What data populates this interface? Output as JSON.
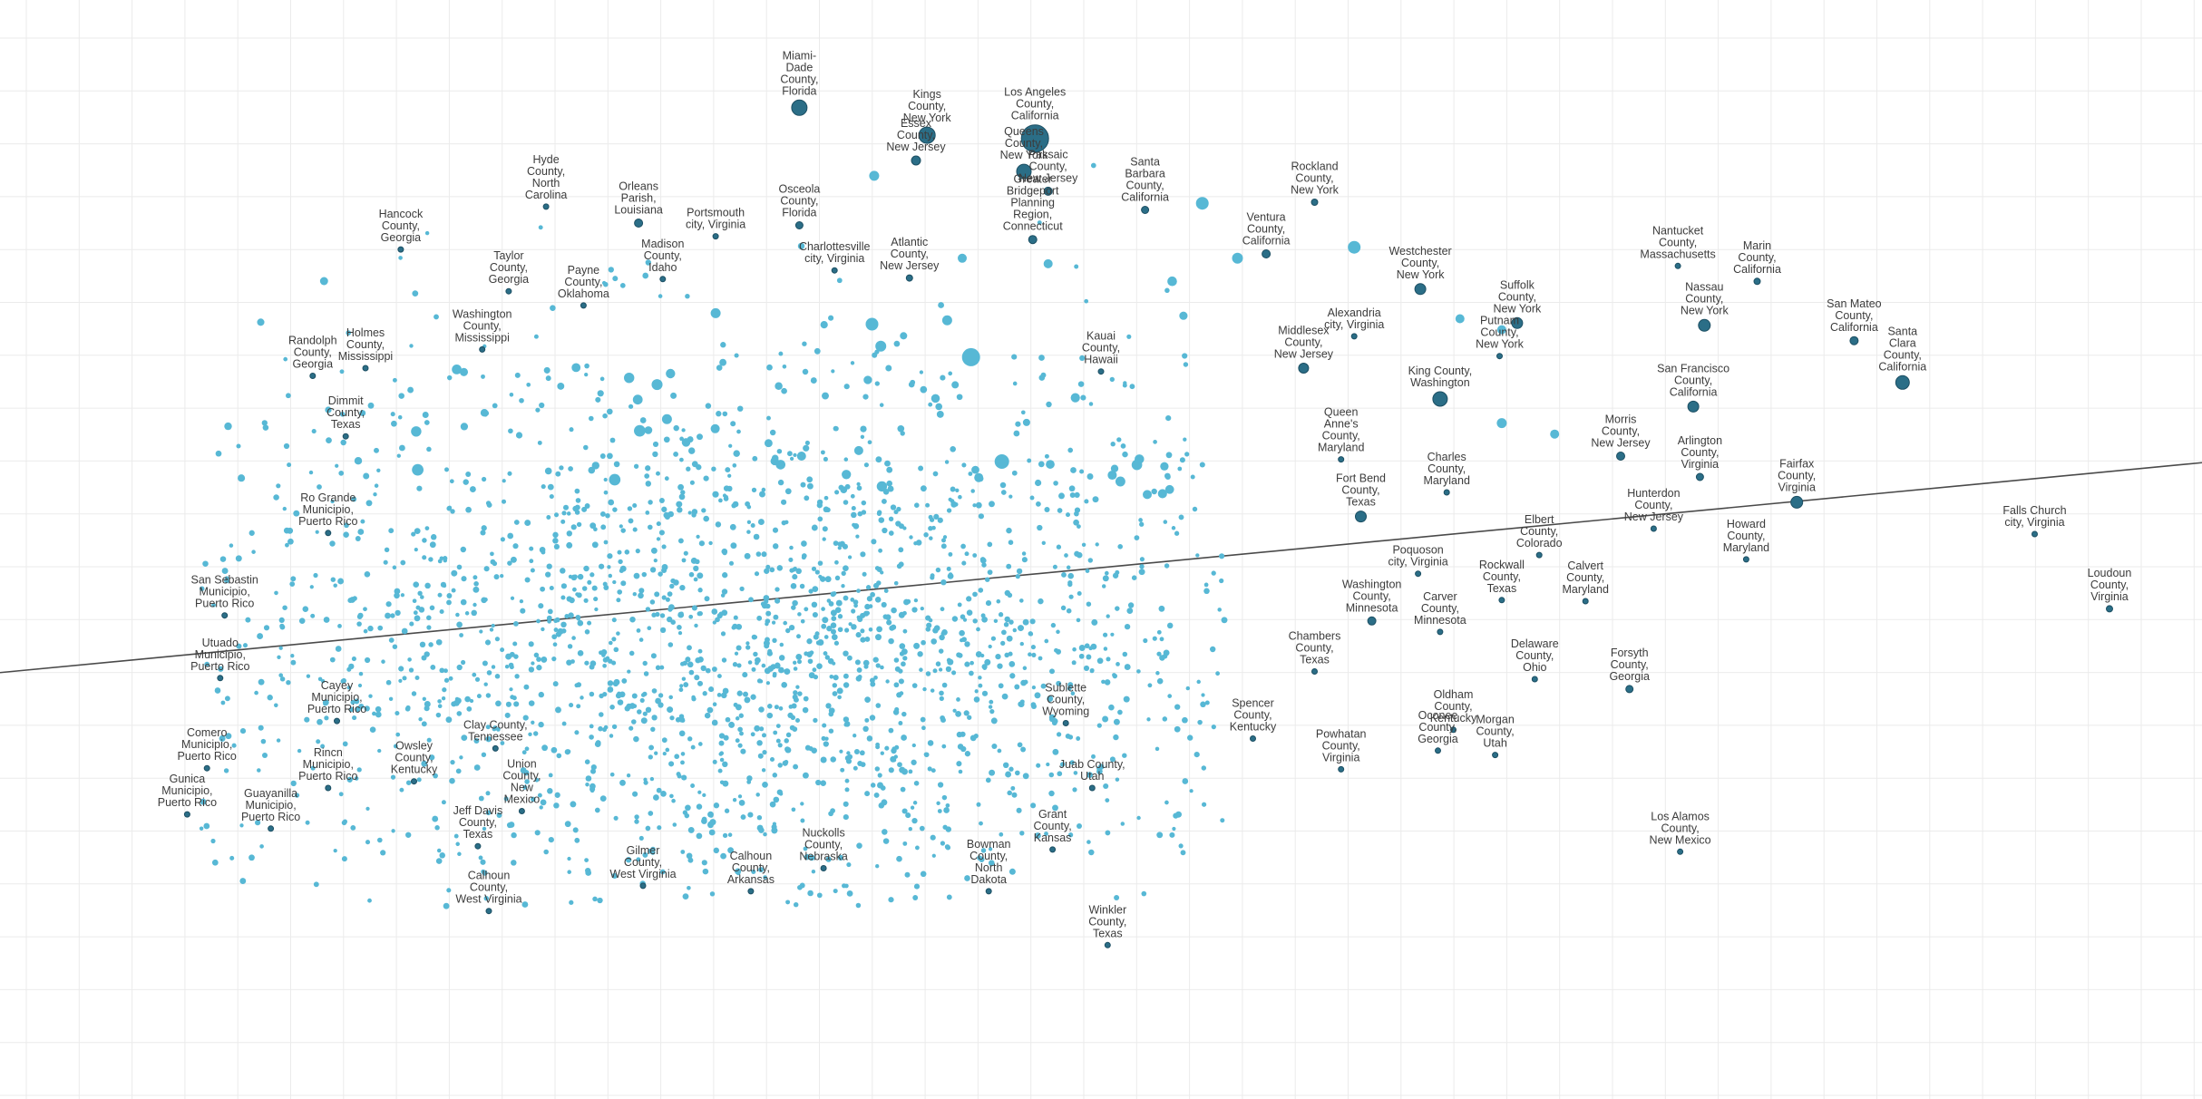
{
  "chart_data": {
    "type": "scatter",
    "title": "",
    "xlabel": "",
    "ylabel": "",
    "grid": true,
    "legend": "none",
    "trendline": true,
    "xlim": [
      0,
      100
    ],
    "ylim": [
      0,
      100
    ],
    "colors": {
      "points": "#57b8d5",
      "labeled_points": "#2b6e87",
      "trendline": "#4a4a4a",
      "grid": "#ebebeb"
    },
    "trend": {
      "x": [
        0,
        100
      ],
      "y": [
        38.8,
        57.9
      ]
    },
    "cloud": {
      "count": 2100,
      "center_x": 34,
      "center_y": 42,
      "spread_x": 13,
      "spread_y": 13
    },
    "big_points": [
      {
        "x": 39.6,
        "y": 70.5,
        "size": 14
      },
      {
        "x": 44.1,
        "y": 67.5,
        "size": 20
      },
      {
        "x": 40.0,
        "y": 68.5,
        "size": 12
      },
      {
        "x": 45.5,
        "y": 58.0,
        "size": 16
      },
      {
        "x": 54.6,
        "y": 81.5,
        "size": 14
      },
      {
        "x": 61.5,
        "y": 77.5,
        "size": 14
      },
      {
        "x": 56.2,
        "y": 76.5,
        "size": 12
      },
      {
        "x": 39.7,
        "y": 84.0,
        "size": 11
      },
      {
        "x": 32.5,
        "y": 71.5,
        "size": 11
      },
      {
        "x": 47.6,
        "y": 76.0,
        "size": 10
      },
      {
        "x": 43.7,
        "y": 76.5,
        "size": 10
      },
      {
        "x": 68.2,
        "y": 61.5,
        "size": 11
      },
      {
        "x": 52.1,
        "y": 55.0,
        "size": 10
      },
      {
        "x": 36.4,
        "y": 58.5,
        "size": 10
      },
      {
        "x": 66.3,
        "y": 71.0,
        "size": 10
      },
      {
        "x": 70.6,
        "y": 60.5,
        "size": 10
      },
      {
        "x": 68.2,
        "y": 70.0,
        "size": 10
      },
      {
        "x": 39.0,
        "y": 59.0,
        "size": 10
      }
    ],
    "labeled_points": [
      {
        "x": 36.3,
        "y": 90.2,
        "size": 17,
        "label": [
          "Miami-",
          "Dade",
          "County,",
          "Florida"
        ]
      },
      {
        "x": 42.1,
        "y": 87.7,
        "size": 18,
        "label": [
          "Kings",
          "County,",
          "New York"
        ]
      },
      {
        "x": 47.0,
        "y": 87.4,
        "size": 30,
        "label": [
          "Los Angeles",
          "County,",
          "California"
        ]
      },
      {
        "x": 41.6,
        "y": 85.4,
        "size": 10,
        "label": [
          "Essex",
          "County,",
          "New Jersey"
        ]
      },
      {
        "x": 46.5,
        "y": 84.4,
        "size": 16,
        "label": [
          "Queens",
          "County,",
          "New York"
        ]
      },
      {
        "x": 47.6,
        "y": 82.6,
        "size": 9,
        "label": [
          "Passaic",
          "County,",
          "New Jersey"
        ]
      },
      {
        "x": 52.0,
        "y": 80.9,
        "size": 8,
        "label": [
          "Santa",
          "Barbara",
          "County,",
          "California"
        ]
      },
      {
        "x": 59.7,
        "y": 81.6,
        "size": 7,
        "label": [
          "Rockland",
          "County,",
          "New York"
        ]
      },
      {
        "x": 57.5,
        "y": 76.9,
        "size": 9,
        "label": [
          "Ventura",
          "County,",
          "California"
        ]
      },
      {
        "x": 36.3,
        "y": 79.5,
        "size": 8,
        "label": [
          "Osceola",
          "County,",
          "Florida"
        ]
      },
      {
        "x": 29.0,
        "y": 79.7,
        "size": 9,
        "label": [
          "Orleans",
          "Parish,",
          "Louisiana"
        ]
      },
      {
        "x": 24.8,
        "y": 81.2,
        "size": 6,
        "label": [
          "Hyde",
          "County,",
          "North",
          "Carolina"
        ]
      },
      {
        "x": 32.5,
        "y": 78.5,
        "size": 6,
        "label": [
          "Portsmouth",
          "city, Virginia"
        ]
      },
      {
        "x": 30.1,
        "y": 74.6,
        "size": 6,
        "label": [
          "Madison",
          "County,",
          "Idaho"
        ]
      },
      {
        "x": 37.9,
        "y": 75.4,
        "size": 6,
        "label": [
          "Charlottesville",
          "city, Virginia"
        ]
      },
      {
        "x": 41.3,
        "y": 74.7,
        "size": 7,
        "label": [
          "Atlantic",
          "County,",
          "New Jersey"
        ]
      },
      {
        "x": 46.9,
        "y": 78.2,
        "size": 9,
        "label": [
          "Greater",
          "Bridgeport",
          "Planning",
          "Region,",
          "Connecticut"
        ]
      },
      {
        "x": 18.2,
        "y": 77.3,
        "size": 6,
        "label": [
          "Hancock",
          "County,",
          "Georgia"
        ]
      },
      {
        "x": 23.1,
        "y": 73.5,
        "size": 6,
        "label": [
          "Taylor",
          "County,",
          "Georgia"
        ]
      },
      {
        "x": 26.5,
        "y": 72.2,
        "size": 6,
        "label": [
          "Payne",
          "County,",
          "Oklahoma"
        ]
      },
      {
        "x": 21.9,
        "y": 68.2,
        "size": 6,
        "label": [
          "Washington",
          "County,",
          "Mississippi"
        ]
      },
      {
        "x": 16.6,
        "y": 66.5,
        "size": 6,
        "label": [
          "Holmes",
          "County,",
          "Mississippi"
        ]
      },
      {
        "x": 14.2,
        "y": 65.8,
        "size": 6,
        "label": [
          "Randolph",
          "County,",
          "Georgia"
        ]
      },
      {
        "x": 15.7,
        "y": 60.3,
        "size": 6,
        "label": [
          "Dimmit",
          "County,",
          "Texas"
        ]
      },
      {
        "x": 14.9,
        "y": 51.5,
        "size": 6,
        "label": [
          "Ro Grande",
          "Municipio,",
          "Puerto Rico"
        ]
      },
      {
        "x": 10.2,
        "y": 44.0,
        "size": 6,
        "label": [
          "San Sebastin",
          "Municipio,",
          "Puerto Rico"
        ]
      },
      {
        "x": 10.0,
        "y": 38.3,
        "size": 6,
        "label": [
          "Utuado",
          "Municipio,",
          "Puerto Rico"
        ]
      },
      {
        "x": 15.3,
        "y": 34.4,
        "size": 6,
        "label": [
          "Cayey",
          "Municipio,",
          "Puerto Rico"
        ]
      },
      {
        "x": 9.4,
        "y": 30.1,
        "size": 6,
        "label": [
          "Comero",
          "Municipio,",
          "Puerto Rico"
        ]
      },
      {
        "x": 8.5,
        "y": 25.9,
        "size": 6,
        "label": [
          "Gunica",
          "Municipio,",
          "Puerto Rico"
        ]
      },
      {
        "x": 12.3,
        "y": 24.6,
        "size": 6,
        "label": [
          "Guayanilla",
          "Municipio,",
          "Puerto Rico"
        ]
      },
      {
        "x": 14.9,
        "y": 28.3,
        "size": 6,
        "label": [
          "Rincn",
          "Municipio,",
          "Puerto Rico"
        ]
      },
      {
        "x": 18.8,
        "y": 28.9,
        "size": 6,
        "label": [
          "Owsley",
          "County,",
          "Kentucky"
        ]
      },
      {
        "x": 22.5,
        "y": 31.9,
        "size": 6,
        "label": [
          "Clay County,",
          "Tennessee"
        ]
      },
      {
        "x": 21.7,
        "y": 23.0,
        "size": 6,
        "label": [
          "Jeff Davis",
          "County,",
          "Texas"
        ]
      },
      {
        "x": 23.7,
        "y": 26.2,
        "size": 6,
        "label": [
          "Union",
          "County,",
          "New",
          "Mexico"
        ]
      },
      {
        "x": 22.2,
        "y": 17.1,
        "size": 6,
        "label": [
          "Calhoun",
          "County,",
          "West Virginia"
        ]
      },
      {
        "x": 29.2,
        "y": 19.4,
        "size": 6,
        "label": [
          "Gilmer",
          "County,",
          "West Virginia"
        ]
      },
      {
        "x": 34.1,
        "y": 18.9,
        "size": 6,
        "label": [
          "Calhoun",
          "County,",
          "Arkansas"
        ]
      },
      {
        "x": 37.4,
        "y": 21.0,
        "size": 6,
        "label": [
          "Nuckolls",
          "County,",
          "Nebraska"
        ]
      },
      {
        "x": 44.9,
        "y": 18.9,
        "size": 6,
        "label": [
          "Bowman",
          "County,",
          "North",
          "Dakota"
        ]
      },
      {
        "x": 48.4,
        "y": 34.2,
        "size": 6,
        "label": [
          "Sublette",
          "County,",
          "Wyoming"
        ]
      },
      {
        "x": 49.6,
        "y": 28.3,
        "size": 6,
        "label": [
          "Juab County,",
          "Utah"
        ]
      },
      {
        "x": 47.8,
        "y": 22.7,
        "size": 6,
        "label": [
          "Grant",
          "County,",
          "Kansas"
        ]
      },
      {
        "x": 50.3,
        "y": 14.0,
        "size": 6,
        "label": [
          "Winkler",
          "County,",
          "Texas"
        ]
      },
      {
        "x": 50.0,
        "y": 66.2,
        "size": 6,
        "label": [
          "Kauai",
          "County,",
          "Hawaii"
        ]
      },
      {
        "x": 59.2,
        "y": 66.5,
        "size": 11,
        "label": [
          "Middlesex",
          "County,",
          "New Jersey"
        ]
      },
      {
        "x": 61.5,
        "y": 69.4,
        "size": 6,
        "label": [
          "Alexandria",
          "city, Virginia"
        ]
      },
      {
        "x": 64.5,
        "y": 73.7,
        "size": 12,
        "label": [
          "Westchester",
          "County,",
          "New York"
        ]
      },
      {
        "x": 65.4,
        "y": 63.7,
        "size": 16,
        "label": [
          "King County,",
          "Washington"
        ]
      },
      {
        "x": 68.9,
        "y": 70.6,
        "size": 12,
        "label": [
          "Suffolk",
          "County,",
          "New York"
        ]
      },
      {
        "x": 68.1,
        "y": 67.6,
        "size": 6,
        "label": [
          "Putnam",
          "County,",
          "New York"
        ]
      },
      {
        "x": 60.9,
        "y": 58.2,
        "size": 6,
        "label": [
          "Queen",
          "Anne's",
          "County,",
          "Maryland"
        ]
      },
      {
        "x": 65.7,
        "y": 55.2,
        "size": 6,
        "label": [
          "Charles",
          "County,",
          "Maryland"
        ]
      },
      {
        "x": 61.8,
        "y": 53.0,
        "size": 12,
        "label": [
          "Fort Bend",
          "County,",
          "Texas"
        ]
      },
      {
        "x": 64.4,
        "y": 47.8,
        "size": 6,
        "label": [
          "Poquoson",
          "city, Virginia"
        ]
      },
      {
        "x": 62.3,
        "y": 43.5,
        "size": 9,
        "label": [
          "Washington",
          "County,",
          "Minnesota"
        ]
      },
      {
        "x": 65.4,
        "y": 42.5,
        "size": 6,
        "label": [
          "Carver",
          "County,",
          "Minnesota"
        ]
      },
      {
        "x": 59.7,
        "y": 38.9,
        "size": 6,
        "label": [
          "Chambers",
          "County,",
          "Texas"
        ]
      },
      {
        "x": 56.9,
        "y": 32.8,
        "size": 6,
        "label": [
          "Spencer",
          "County,",
          "Kentucky"
        ]
      },
      {
        "x": 60.9,
        "y": 30.0,
        "size": 6,
        "label": [
          "Powhatan",
          "County,",
          "Virginia"
        ]
      },
      {
        "x": 66.0,
        "y": 33.6,
        "size": 6,
        "label": [
          "Oldham",
          "County,",
          "Kentucky"
        ]
      },
      {
        "x": 65.3,
        "y": 31.7,
        "size": 6,
        "label": [
          "Oconee",
          "County,",
          "Georgia"
        ]
      },
      {
        "x": 67.9,
        "y": 31.3,
        "size": 6,
        "label": [
          "Morgan",
          "County,",
          "Utah"
        ]
      },
      {
        "x": 68.2,
        "y": 45.4,
        "size": 6,
        "label": [
          "Rockwall",
          "County,",
          "Texas"
        ]
      },
      {
        "x": 69.7,
        "y": 38.2,
        "size": 6,
        "label": [
          "Delaware",
          "County,",
          "Ohio"
        ]
      },
      {
        "x": 69.9,
        "y": 49.5,
        "size": 6,
        "label": [
          "Elbert",
          "County,",
          "Colorado"
        ]
      },
      {
        "x": 72.0,
        "y": 45.3,
        "size": 6,
        "label": [
          "Calvert",
          "County,",
          "Maryland"
        ]
      },
      {
        "x": 73.6,
        "y": 58.5,
        "size": 9,
        "label": [
          "Morris",
          "County,",
          "New Jersey"
        ]
      },
      {
        "x": 75.1,
        "y": 51.9,
        "size": 6,
        "label": [
          "Hunterdon",
          "County,",
          "New Jersey"
        ]
      },
      {
        "x": 74.0,
        "y": 37.3,
        "size": 8,
        "label": [
          "Forsyth",
          "County,",
          "Georgia"
        ]
      },
      {
        "x": 76.3,
        "y": 22.5,
        "size": 6,
        "label": [
          "Los Alamos",
          "County,",
          "New Mexico"
        ]
      },
      {
        "x": 76.9,
        "y": 63.0,
        "size": 12,
        "label": [
          "San Francisco",
          "County,",
          "California"
        ]
      },
      {
        "x": 77.4,
        "y": 70.4,
        "size": 13,
        "label": [
          "Nassau",
          "County,",
          "New York"
        ]
      },
      {
        "x": 76.2,
        "y": 75.8,
        "size": 6,
        "label": [
          "Nantucket",
          "County,",
          "Massachusetts"
        ]
      },
      {
        "x": 79.8,
        "y": 74.4,
        "size": 7,
        "label": [
          "Marin",
          "County,",
          "California"
        ]
      },
      {
        "x": 84.2,
        "y": 69.0,
        "size": 9,
        "label": [
          "San Mateo",
          "County,",
          "California"
        ]
      },
      {
        "x": 86.4,
        "y": 65.2,
        "size": 15,
        "label": [
          "Santa",
          "Clara",
          "County,",
          "California"
        ]
      },
      {
        "x": 77.2,
        "y": 56.6,
        "size": 8,
        "label": [
          "Arlington",
          "County,",
          "Virginia"
        ]
      },
      {
        "x": 81.6,
        "y": 54.3,
        "size": 13,
        "label": [
          "Fairfax",
          "County,",
          "Virginia"
        ]
      },
      {
        "x": 79.3,
        "y": 49.1,
        "size": 6,
        "label": [
          "Howard",
          "County,",
          "Maryland"
        ]
      },
      {
        "x": 92.4,
        "y": 51.4,
        "size": 6,
        "label": [
          "Falls Church",
          "city, Virginia"
        ]
      },
      {
        "x": 95.8,
        "y": 44.6,
        "size": 7,
        "label": [
          "Loudoun",
          "County,",
          "Virginia"
        ]
      }
    ]
  }
}
